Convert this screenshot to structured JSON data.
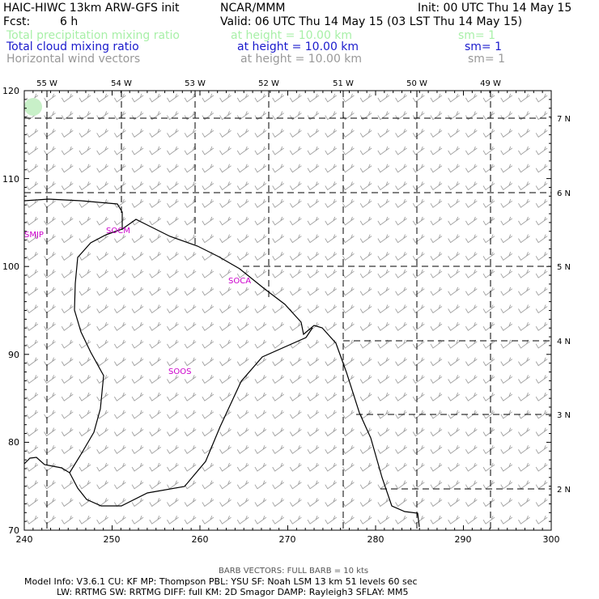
{
  "header": {
    "model_title": "HAIC-HIWC 13km ARW-GFS init",
    "org": "NCAR/MMM",
    "init": "Init: 00 UTC Thu 14 May 15",
    "fcst_label": "Fcst:",
    "fcst_value": "6 h",
    "valid": "Valid: 06 UTC Thu 14 May 15 (03 LST Thu 14 May 15)"
  },
  "fields": [
    {
      "name": "Total precipitation mixing ratio",
      "height": "at height = 10.00 km",
      "sm": "sm= 1",
      "color": "#a8f0a8"
    },
    {
      "name": "Total cloud mixing ratio",
      "height": "at height = 10.00 km",
      "sm": "sm= 1",
      "color": "#1a1acc"
    },
    {
      "name": "Horizontal wind vectors",
      "height": "at height = 10.00 km",
      "sm": "sm= 1",
      "color": "#999999"
    }
  ],
  "map": {
    "x_ticks": [
      "240",
      "250",
      "260",
      "270",
      "280",
      "290",
      "300"
    ],
    "y_ticks": [
      "70",
      "80",
      "90",
      "100",
      "110",
      "120"
    ],
    "lon_labels": [
      "55 W",
      "54 W",
      "53 W",
      "52 W",
      "51 W",
      "50 W",
      "49 W"
    ],
    "lat_labels": [
      "7 N",
      "6 N",
      "5 N",
      "4 N",
      "3 N",
      "2 N"
    ],
    "stations": [
      "SMJP",
      "SOCM",
      "SOCA",
      "SOOS"
    ],
    "station_color": "#cc00cc",
    "coast_color": "#000000",
    "grid_color": "#000000",
    "barb_color": "#a0a0a0"
  },
  "footer": {
    "barb_note": "BARB VECTORS:  FULL BARB = 10 kts",
    "line1": "Model Info: V3.6.1     CU: KF       MP: Thompson     PBL: YSU       SF: Noah LSM      13 km    51 levels    60 sec",
    "line2": "LW: RRTMG    SW: RRTMG   DIFF: full    KM: 2D Smagor DAMP: Rayleigh3   SFLAY: MM5"
  }
}
